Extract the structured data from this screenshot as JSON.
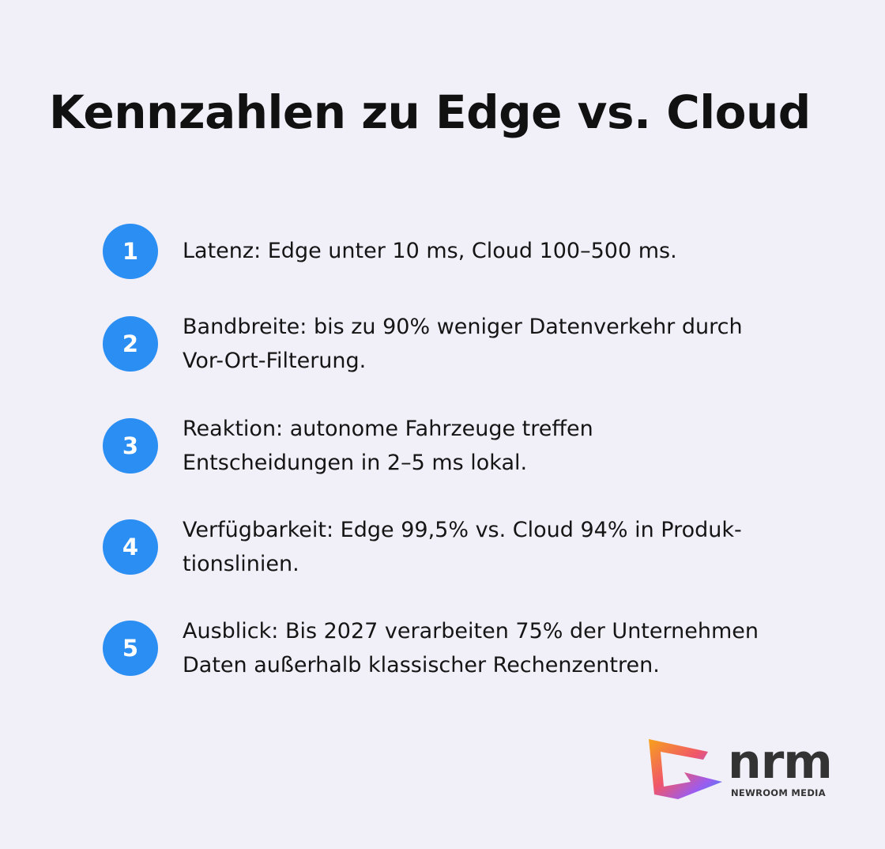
{
  "header": {
    "title": "Kennzahlen zu Edge vs. Cloud"
  },
  "items": [
    {
      "number": 1,
      "lines": [
        "Latenz: Edge unter 10 ms, Cloud 100–500 ms."
      ]
    },
    {
      "number": 2,
      "lines": [
        "Bandbreite: bis zu 90% weniger Datenverkehr durch",
        "Vor-Ort-Filterung."
      ]
    },
    {
      "number": 3,
      "lines": [
        "Reaktion: autonome Fahrzeuge treffen",
        "Entscheidungen in 2–5 ms lokal."
      ]
    },
    {
      "number": 4,
      "lines": [
        "Verfügbarkeit: Edge 99,5% vs. Cloud 94% in Produk-",
        "tionslinien."
      ]
    },
    {
      "number": 5,
      "lines": [
        "Ausblick: Bis 2027 verarbeiten 75% der Unternehmen",
        "Daten außerhalb klassischer Rechenzentren."
      ]
    }
  ],
  "logo": {
    "wordmark": "nrm",
    "tagline": "NEWROOM MEDIA"
  }
}
